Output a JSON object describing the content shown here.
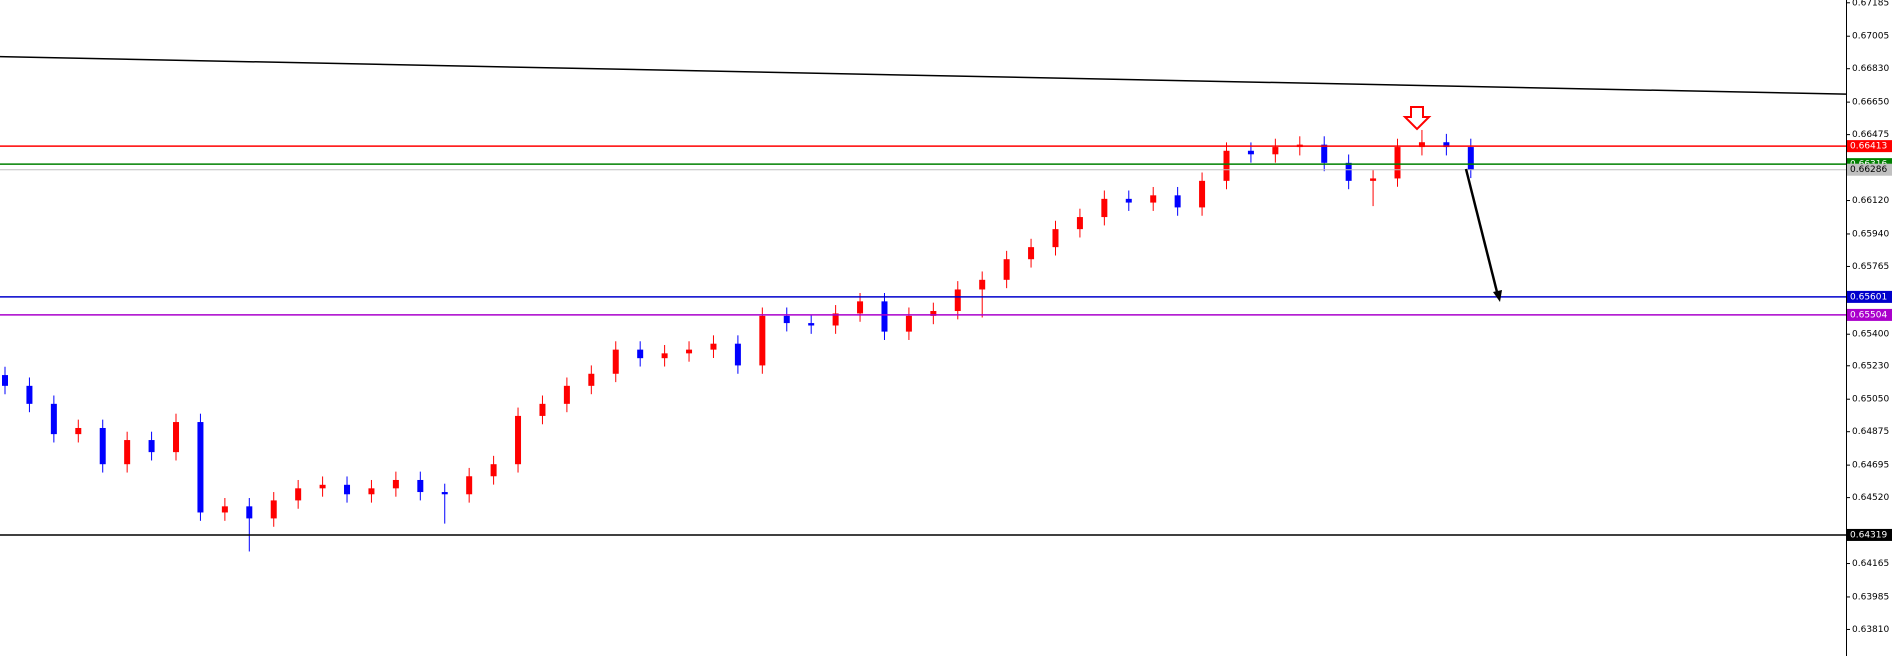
{
  "chart_data": {
    "type": "candlestick",
    "up_color": "#ff0000",
    "down_color": "#0000ff",
    "ylim": [
      0.63667,
      0.672
    ],
    "yticks": [
      0.67185,
      0.67005,
      {
        "value": 0.6683,
        "label": "0.66830"
      },
      {
        "value": 0.6665,
        "label": "0.66650"
      },
      0.66475,
      {
        "value": 0.6612,
        "label": "0.66120"
      },
      {
        "value": 0.6594,
        "label": "0.65940"
      },
      0.65765,
      {
        "value": 0.654,
        "label": "0.65400"
      },
      {
        "value": 0.6523,
        "label": "0.65230"
      },
      {
        "value": 0.6505,
        "label": "0.65050"
      },
      0.64875,
      0.64695,
      {
        "value": 0.6452,
        "label": "0.64520"
      },
      0.64165,
      0.63985,
      {
        "value": 0.6381,
        "label": "0.63810"
      }
    ],
    "open": [
      0.6518,
      0.65122,
      0.65025,
      0.64862,
      0.64895,
      0.647,
      0.6483,
      0.64765,
      0.64927,
      0.6444,
      0.64473,
      0.64408,
      0.64505,
      0.6457,
      0.64589,
      0.64538,
      0.6457,
      0.64615,
      0.6455,
      0.64538,
      0.64635,
      0.647,
      0.6496,
      0.65025,
      0.65122,
      0.65187,
      0.65317,
      0.65271,
      0.65297,
      0.65317,
      0.65349,
      0.65232,
      0.65499,
      0.6546,
      0.65447,
      0.65512,
      0.65577,
      0.65414,
      0.65499,
      0.65525,
      0.65641,
      0.65693,
      0.65804,
      0.65869,
      0.65966,
      0.66031,
      0.66129,
      0.66109,
      0.66148,
      0.66083,
      0.66226,
      0.66388,
      0.66369,
      0.66408,
      0.66421,
      0.66323,
      0.66226,
      0.66239,
      0.66408,
      0.66434,
      0.66408
    ],
    "high": [
      0.65225,
      0.65167,
      0.6507,
      0.6494,
      0.6494,
      0.64875,
      0.64875,
      0.64972,
      0.64972,
      0.64518,
      0.64518,
      0.6455,
      0.64615,
      0.64634,
      0.64634,
      0.64615,
      0.6466,
      0.6466,
      0.64595,
      0.6468,
      0.64745,
      0.65005,
      0.6507,
      0.65167,
      0.65232,
      0.65362,
      0.65362,
      0.65342,
      0.65362,
      0.65394,
      0.65394,
      0.65544,
      0.65544,
      0.65505,
      0.65557,
      0.65622,
      0.65622,
      0.65544,
      0.6557,
      0.65686,
      0.65738,
      0.65849,
      0.65914,
      0.66011,
      0.66076,
      0.66174,
      0.66174,
      0.66193,
      0.66193,
      0.66271,
      0.66433,
      0.66433,
      0.66453,
      0.66466,
      0.66466,
      0.66368,
      0.66284,
      0.66453,
      0.665,
      0.66479,
      0.66453
    ],
    "low": [
      0.65077,
      0.6498,
      0.64817,
      0.64817,
      0.64655,
      0.64655,
      0.6472,
      0.6472,
      0.64395,
      0.64395,
      0.6423,
      0.64363,
      0.6446,
      0.64525,
      0.64493,
      0.64493,
      0.64525,
      0.64505,
      0.6438,
      0.64493,
      0.6459,
      0.64655,
      0.64915,
      0.6498,
      0.65077,
      0.65142,
      0.65226,
      0.65226,
      0.65252,
      0.65272,
      0.65187,
      0.65187,
      0.65415,
      0.65402,
      0.65402,
      0.65467,
      0.65369,
      0.65369,
      0.65454,
      0.6548,
      0.6549,
      0.65648,
      0.65759,
      0.65824,
      0.65921,
      0.65986,
      0.66064,
      0.66064,
      0.66038,
      0.66038,
      0.66181,
      0.66324,
      0.66324,
      0.66363,
      0.66278,
      0.66181,
      0.6609,
      0.66194,
      0.66363,
      0.66363,
      0.66241
    ],
    "close": [
      0.65122,
      0.65025,
      0.64862,
      0.64895,
      0.647,
      0.6483,
      0.64765,
      0.64927,
      0.6444,
      0.64473,
      0.64408,
      0.64505,
      0.6457,
      0.64589,
      0.64538,
      0.6457,
      0.64615,
      0.6455,
      0.64538,
      0.64635,
      0.647,
      0.6496,
      0.65025,
      0.65122,
      0.65187,
      0.65317,
      0.65271,
      0.65297,
      0.65317,
      0.65349,
      0.65232,
      0.65499,
      0.6546,
      0.65447,
      0.65512,
      0.65577,
      0.65414,
      0.65499,
      0.65525,
      0.65641,
      0.65693,
      0.65804,
      0.65869,
      0.65966,
      0.66031,
      0.66129,
      0.66109,
      0.66148,
      0.66083,
      0.66226,
      0.66388,
      0.66369,
      0.66408,
      0.66421,
      0.66323,
      0.66226,
      0.66239,
      0.66408,
      0.66434,
      0.66408,
      0.66286
    ],
    "levels": [
      {
        "value": 0.66413,
        "color": "#ff0000"
      },
      {
        "value": 0.66316,
        "color": "#008000"
      },
      {
        "value": 0.66286,
        "color": "#c0c0c0"
      },
      {
        "value": 0.65601,
        "color": "#0000cc"
      },
      {
        "value": 0.65504,
        "color": "#aa00cc"
      },
      {
        "value": 0.64319,
        "color": "#000000"
      }
    ],
    "trendline": {
      "values": [
        0.66895,
        0.66693
      ],
      "color": "#000000"
    }
  }
}
